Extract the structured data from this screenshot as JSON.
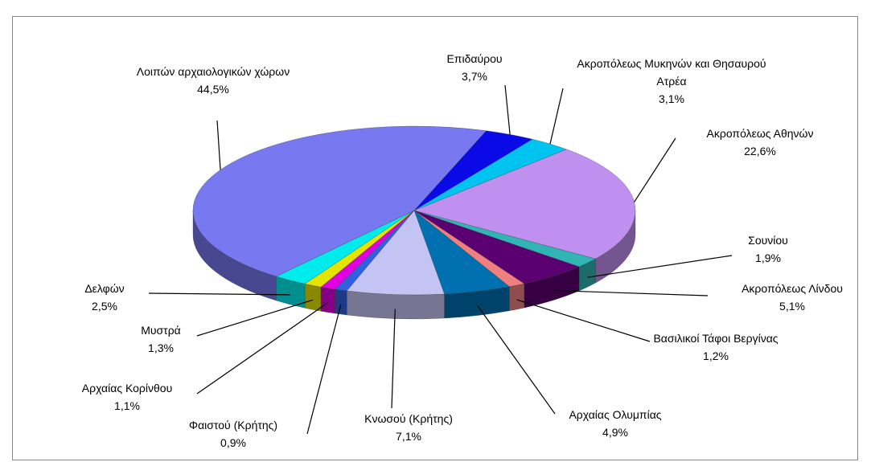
{
  "chart_data": {
    "type": "pie",
    "categories": [
      "Επιδαύρου",
      "Ακροπόλεως Μυκηνών και Θησαυρού Ατρέα",
      "Ακροπόλεως Αθηνών",
      "Σουνίου",
      "Ακροπόλεως Λίνδου",
      "Βασιλικοί Τάφοι Βεργίνας",
      "Αρχαίας Ολυμπίας",
      "Κνωσού (Κρήτης)",
      "Φαιστού (Κρήτης)",
      "Αρχαίας Κορίνθου",
      "Μυστρά",
      "Δελφών",
      "Λοιπών αρχαιολογικών χώρων"
    ],
    "values": [
      3.7,
      3.1,
      22.6,
      1.9,
      5.1,
      1.2,
      4.9,
      7.1,
      0.9,
      1.1,
      1.3,
      2.5,
      44.5
    ],
    "value_labels": [
      "3,7%",
      "3,1%",
      "22,6%",
      "1,9%",
      "5,1%",
      "1,2%",
      "4,9%",
      "7,1%",
      "0,9%",
      "1,1%",
      "1,3%",
      "2,5%",
      "44,5%"
    ],
    "colors": [
      "#0a0ae6",
      "#00c4f0",
      "#c090f0",
      "#30b4b4",
      "#5a0070",
      "#f08080",
      "#0070b0",
      "#c4c4f4",
      "#3060e0",
      "#e000e0",
      "#e4e400",
      "#00ecec",
      "#7878f0"
    ]
  }
}
